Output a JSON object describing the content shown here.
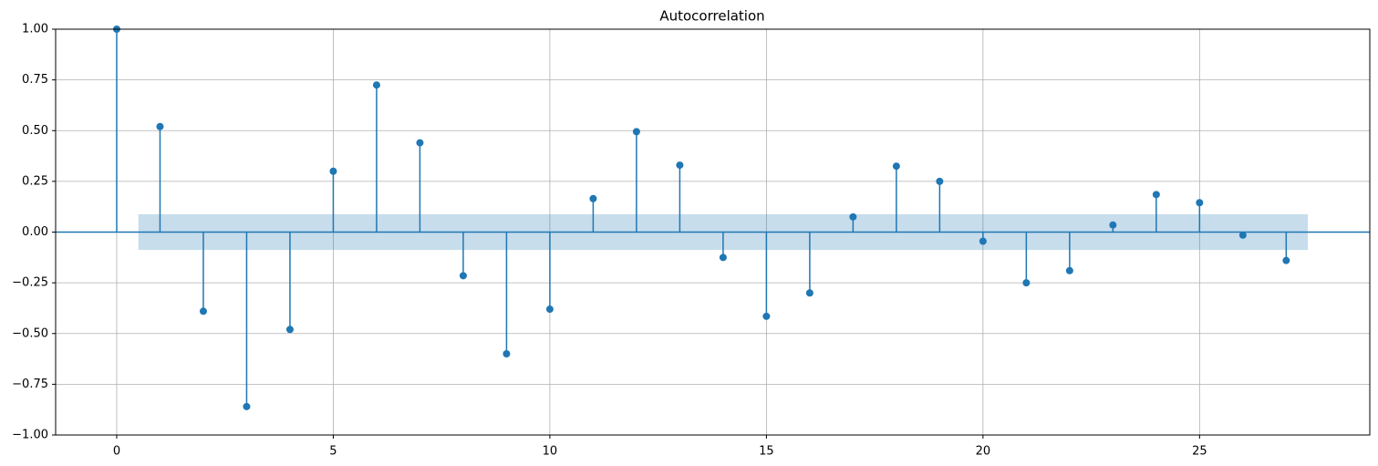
{
  "chart_data": {
    "type": "stem",
    "title": "Autocorrelation",
    "x": [
      0,
      1,
      2,
      3,
      4,
      5,
      6,
      7,
      8,
      9,
      10,
      11,
      12,
      13,
      14,
      15,
      16,
      17,
      18,
      19,
      20,
      21,
      22,
      23,
      24,
      25,
      26,
      27
    ],
    "values": [
      1.0,
      0.52,
      -0.39,
      -0.86,
      -0.48,
      0.3,
      0.725,
      0.44,
      -0.215,
      -0.6,
      -0.38,
      0.165,
      0.495,
      0.33,
      -0.125,
      -0.415,
      -0.3,
      0.075,
      0.325,
      0.25,
      -0.045,
      -0.25,
      -0.19,
      0.035,
      0.185,
      0.145,
      -0.015,
      -0.14
    ],
    "confint": [
      -0.088,
      0.088
    ],
    "color": "#1f77b4",
    "xlim": [
      -1.41,
      28.93
    ],
    "xticks": [
      0,
      5,
      10,
      15,
      20,
      25
    ],
    "ylim": [
      -1,
      1
    ],
    "yticks": [
      {
        "value": -1,
        "label": "−1.00"
      },
      {
        "value": -0.75,
        "label": "−0.75"
      },
      {
        "value": -0.5,
        "label": "−0.50"
      },
      {
        "value": -0.25,
        "label": "−0.25"
      },
      {
        "value": 0,
        "label": "0.00"
      },
      0.25,
      {
        "value": 0.5,
        "label": "0.50"
      },
      0.75,
      {
        "value": 1,
        "label": "1.00"
      }
    ],
    "grid": true
  }
}
